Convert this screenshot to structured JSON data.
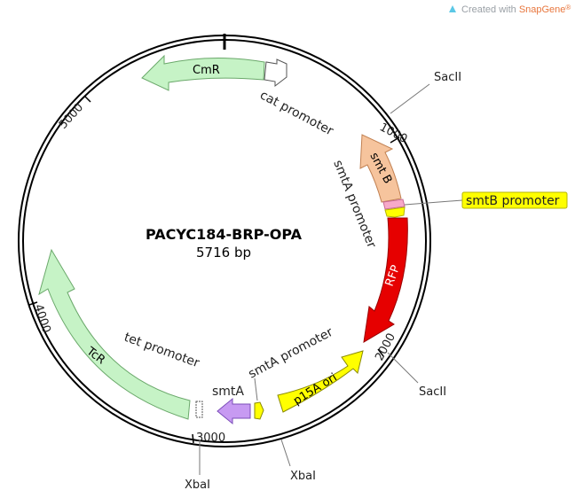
{
  "branding": {
    "prefix": "Created with ",
    "name": "SnapGene",
    "mark": "®",
    "name_color": "#e8763d",
    "prefix_color": "#9aa0a6"
  },
  "plasmid": {
    "name": "PACYC184-BRP-OPA",
    "length_label": "5716 bp"
  },
  "ticks": [
    "1000",
    "2000",
    "3000",
    "4000",
    "5000"
  ],
  "sites": [
    "SacII",
    "SacII",
    "XbaI",
    "XbaI"
  ],
  "features": {
    "cmr": {
      "label": "CmR",
      "color": "#c6f3c6"
    },
    "cat_promoter": {
      "label": "cat promoter",
      "color": "#ffffff"
    },
    "smtb": {
      "label": "smt B",
      "color": "#f6c49d"
    },
    "smtb_promoter": {
      "label": "smtB promoter",
      "color": "#f7a9c9",
      "callout_color": "#ffff00"
    },
    "smta_promoter_upper": {
      "label": "smtA promoter",
      "color": "#ffff00"
    },
    "rfp": {
      "label": "RFP",
      "color": "#e60000"
    },
    "p15a_ori": {
      "label": "p15A ori",
      "color": "#ffff00"
    },
    "smta_promoter_lower": {
      "label": "smtA promoter",
      "color": "#ffff00"
    },
    "smta": {
      "label": "smtA",
      "color": "#c79af2"
    },
    "tet_promoter": {
      "label": "tet promoter",
      "color": "#ffffff"
    },
    "tcr": {
      "label": "TcR",
      "color": "#c6f3c6"
    }
  }
}
